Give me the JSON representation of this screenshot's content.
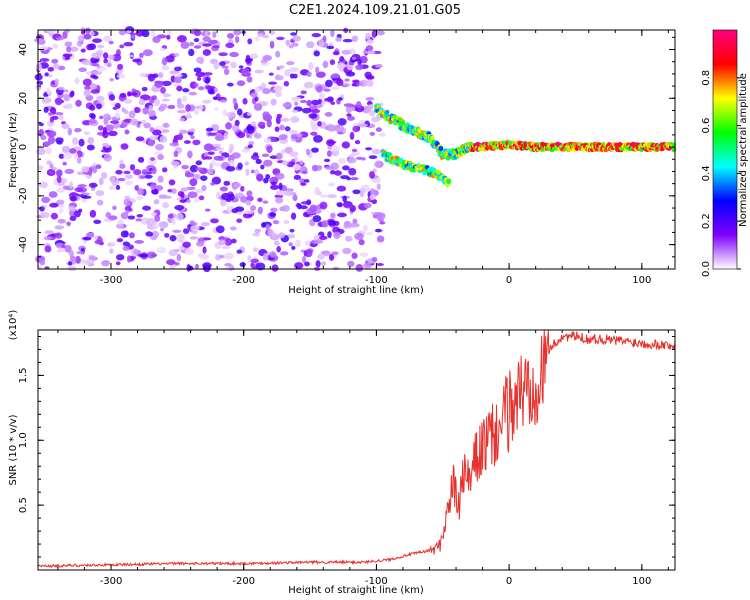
{
  "figure_title": "C2E1.2024.109.21.01.G05",
  "chart_data": [
    {
      "type": "heatmap",
      "xlabel": "Height of straight line (km)",
      "ylabel": "Frequency (Hz)",
      "xlim": [
        -355,
        125
      ],
      "ylim": [
        -50,
        48
      ],
      "x_ticks": [
        -300,
        -200,
        -100,
        0,
        100
      ],
      "x_tick_labels": [
        "-300",
        "-200",
        "-100",
        "0",
        "100"
      ],
      "y_ticks": [
        -40,
        -20,
        0,
        20,
        40
      ],
      "y_tick_labels": [
        "-40",
        "-20",
        "0",
        "20",
        "40"
      ],
      "colorbar": {
        "label": "Normalized spectral amplitude",
        "range": [
          0,
          1
        ],
        "ticks": [
          0.0,
          0.2,
          0.4,
          0.6,
          0.8
        ],
        "tick_labels": [
          "0.0",
          "0.2",
          "0.4",
          "0.6",
          "0.8"
        ],
        "colormap": [
          "#ffffff",
          "#8000ff",
          "#0000ff",
          "#00ffff",
          "#00ff00",
          "#ffff00",
          "#ff0000",
          "#ff0080"
        ]
      },
      "ridge": [
        {
          "x": -100,
          "y": 16
        },
        {
          "x": -90,
          "y": 12
        },
        {
          "x": -80,
          "y": 9
        },
        {
          "x": -70,
          "y": 6
        },
        {
          "x": -60,
          "y": 4
        },
        {
          "x": -50,
          "y": -3
        },
        {
          "x": -40,
          "y": -3
        },
        {
          "x": -30,
          "y": 0
        },
        {
          "x": -20,
          "y": 0
        },
        {
          "x": 0,
          "y": 1
        },
        {
          "x": 20,
          "y": 0
        },
        {
          "x": 60,
          "y": 0
        },
        {
          "x": 100,
          "y": 0
        },
        {
          "x": 125,
          "y": 0
        }
      ],
      "lower_branch": [
        {
          "x": -95,
          "y": -3
        },
        {
          "x": -80,
          "y": -7
        },
        {
          "x": -65,
          "y": -9
        },
        {
          "x": -50,
          "y": -12
        },
        {
          "x": -45,
          "y": -15
        }
      ],
      "grid": false
    },
    {
      "type": "line",
      "xlabel": "Height of straight line (km)",
      "ylabel": "SNR (10 * v/v)",
      "multiplier_label": "(x10⁴)",
      "xlim": [
        -355,
        125
      ],
      "ylim": [
        0,
        1.85
      ],
      "x_ticks": [
        -300,
        -200,
        -100,
        0,
        100
      ],
      "x_tick_labels": [
        "-300",
        "-200",
        "-100",
        "0",
        "100"
      ],
      "y_ticks": [
        0.5,
        1.0,
        1.5
      ],
      "y_tick_labels": [
        "0.5",
        "1.0",
        "1.5"
      ],
      "color": "#e8302c",
      "series": [
        {
          "x": [
            -355,
            -300,
            -250,
            -200,
            -150,
            -110,
            -90,
            -75,
            -60,
            -52,
            -46,
            -42,
            -38,
            -34,
            -30,
            -25,
            -20,
            -15,
            -10,
            -5,
            0,
            5,
            10,
            15,
            20,
            25,
            30,
            35,
            40,
            50,
            60,
            70,
            80,
            90,
            100,
            110,
            125
          ],
          "values": [
            0.03,
            0.04,
            0.05,
            0.05,
            0.06,
            0.06,
            0.08,
            0.12,
            0.15,
            0.2,
            0.5,
            0.7,
            0.5,
            0.8,
            0.7,
            0.9,
            1.0,
            1.05,
            1.1,
            1.2,
            1.3,
            1.4,
            1.45,
            1.5,
            1.6,
            1.62,
            1.7,
            1.75,
            1.8,
            1.8,
            1.78,
            1.78,
            1.77,
            1.76,
            1.75,
            1.74,
            1.73
          ]
        }
      ],
      "grid": false
    }
  ]
}
